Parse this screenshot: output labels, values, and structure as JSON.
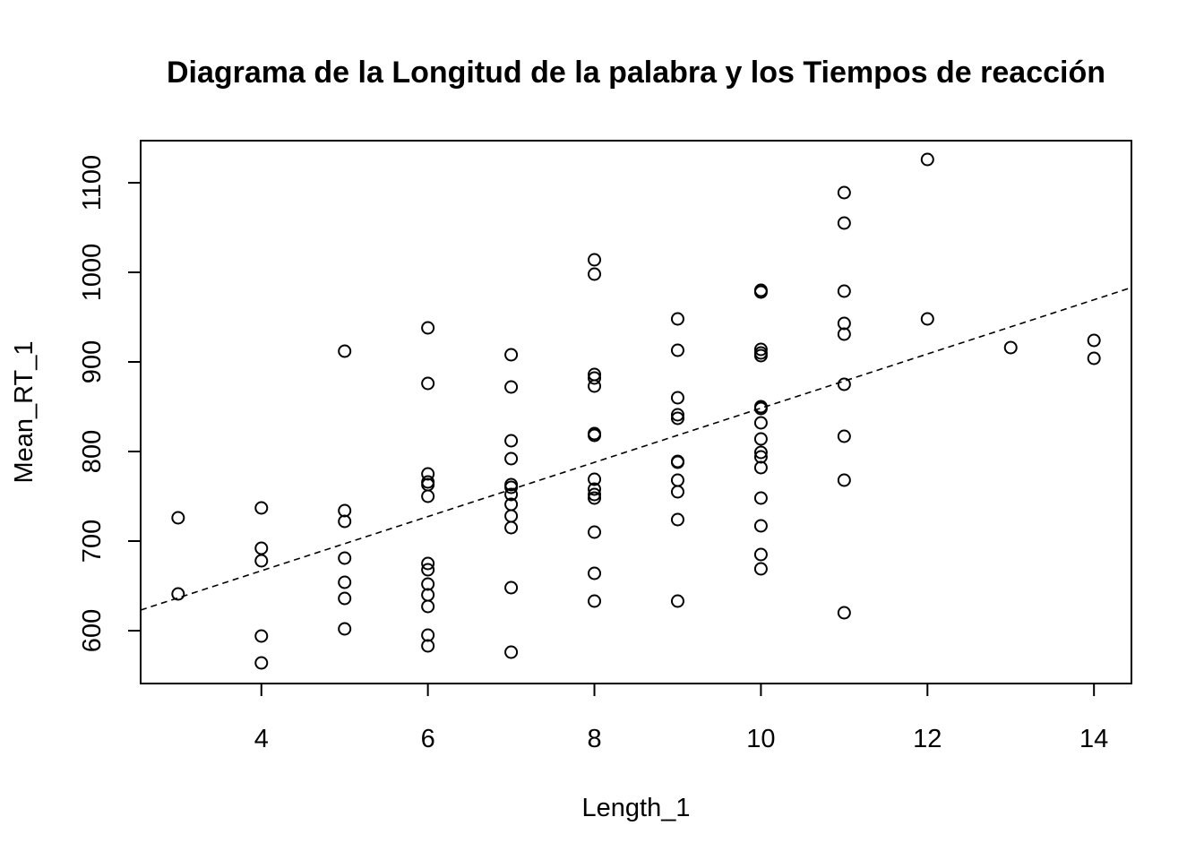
{
  "chart_data": {
    "type": "scatter",
    "title": "Diagrama de la Longitud de la palabra y los Tiempos de reacción",
    "xlabel": "Length_1",
    "ylabel": "Mean_RT_1",
    "xlim": [
      2.55,
      14.45
    ],
    "ylim": [
      541,
      1147
    ],
    "x_ticks": [
      4,
      6,
      8,
      10,
      12,
      14
    ],
    "y_ticks": [
      600,
      700,
      800,
      900,
      1000,
      1100
    ],
    "grid": false,
    "legend": "none",
    "points": [
      {
        "x": 3,
        "y": 726
      },
      {
        "x": 3,
        "y": 641
      },
      {
        "x": 4,
        "y": 737
      },
      {
        "x": 4,
        "y": 692
      },
      {
        "x": 4,
        "y": 678
      },
      {
        "x": 4,
        "y": 594
      },
      {
        "x": 4,
        "y": 564
      },
      {
        "x": 5,
        "y": 912
      },
      {
        "x": 5,
        "y": 734
      },
      {
        "x": 5,
        "y": 722
      },
      {
        "x": 5,
        "y": 681
      },
      {
        "x": 5,
        "y": 654
      },
      {
        "x": 5,
        "y": 636
      },
      {
        "x": 5,
        "y": 602
      },
      {
        "x": 6,
        "y": 938
      },
      {
        "x": 6,
        "y": 876
      },
      {
        "x": 6,
        "y": 775
      },
      {
        "x": 6,
        "y": 766
      },
      {
        "x": 6,
        "y": 763
      },
      {
        "x": 6,
        "y": 750
      },
      {
        "x": 6,
        "y": 675
      },
      {
        "x": 6,
        "y": 668
      },
      {
        "x": 6,
        "y": 652
      },
      {
        "x": 6,
        "y": 640
      },
      {
        "x": 6,
        "y": 627
      },
      {
        "x": 6,
        "y": 595
      },
      {
        "x": 6,
        "y": 583
      },
      {
        "x": 7,
        "y": 908
      },
      {
        "x": 7,
        "y": 872
      },
      {
        "x": 7,
        "y": 812
      },
      {
        "x": 7,
        "y": 792
      },
      {
        "x": 7,
        "y": 763
      },
      {
        "x": 7,
        "y": 760
      },
      {
        "x": 7,
        "y": 752
      },
      {
        "x": 7,
        "y": 741
      },
      {
        "x": 7,
        "y": 728
      },
      {
        "x": 7,
        "y": 715
      },
      {
        "x": 7,
        "y": 648
      },
      {
        "x": 7,
        "y": 576
      },
      {
        "x": 8,
        "y": 1014
      },
      {
        "x": 8,
        "y": 998
      },
      {
        "x": 8,
        "y": 886
      },
      {
        "x": 8,
        "y": 882
      },
      {
        "x": 8,
        "y": 873
      },
      {
        "x": 8,
        "y": 820
      },
      {
        "x": 8,
        "y": 818
      },
      {
        "x": 8,
        "y": 769
      },
      {
        "x": 8,
        "y": 758
      },
      {
        "x": 8,
        "y": 752
      },
      {
        "x": 8,
        "y": 748
      },
      {
        "x": 8,
        "y": 710
      },
      {
        "x": 8,
        "y": 664
      },
      {
        "x": 8,
        "y": 633
      },
      {
        "x": 9,
        "y": 948
      },
      {
        "x": 9,
        "y": 913
      },
      {
        "x": 9,
        "y": 860
      },
      {
        "x": 9,
        "y": 841
      },
      {
        "x": 9,
        "y": 837
      },
      {
        "x": 9,
        "y": 789
      },
      {
        "x": 9,
        "y": 788
      },
      {
        "x": 9,
        "y": 768
      },
      {
        "x": 9,
        "y": 755
      },
      {
        "x": 9,
        "y": 724
      },
      {
        "x": 9,
        "y": 633
      },
      {
        "x": 10,
        "y": 980
      },
      {
        "x": 10,
        "y": 978
      },
      {
        "x": 10,
        "y": 914
      },
      {
        "x": 10,
        "y": 910
      },
      {
        "x": 10,
        "y": 907
      },
      {
        "x": 10,
        "y": 850
      },
      {
        "x": 10,
        "y": 848
      },
      {
        "x": 10,
        "y": 832
      },
      {
        "x": 10,
        "y": 814
      },
      {
        "x": 10,
        "y": 799
      },
      {
        "x": 10,
        "y": 794
      },
      {
        "x": 10,
        "y": 782
      },
      {
        "x": 10,
        "y": 748
      },
      {
        "x": 10,
        "y": 717
      },
      {
        "x": 10,
        "y": 685
      },
      {
        "x": 10,
        "y": 669
      },
      {
        "x": 11,
        "y": 1089
      },
      {
        "x": 11,
        "y": 1055
      },
      {
        "x": 11,
        "y": 979
      },
      {
        "x": 11,
        "y": 943
      },
      {
        "x": 11,
        "y": 931
      },
      {
        "x": 11,
        "y": 875
      },
      {
        "x": 11,
        "y": 817
      },
      {
        "x": 11,
        "y": 768
      },
      {
        "x": 11,
        "y": 620
      },
      {
        "x": 12,
        "y": 1126
      },
      {
        "x": 12,
        "y": 948
      },
      {
        "x": 13,
        "y": 916
      },
      {
        "x": 14,
        "y": 924
      },
      {
        "x": 14,
        "y": 904
      }
    ],
    "regression_line": {
      "style": "dashed",
      "x": [
        2.55,
        14.45
      ],
      "y": [
        623,
        983
      ]
    }
  }
}
